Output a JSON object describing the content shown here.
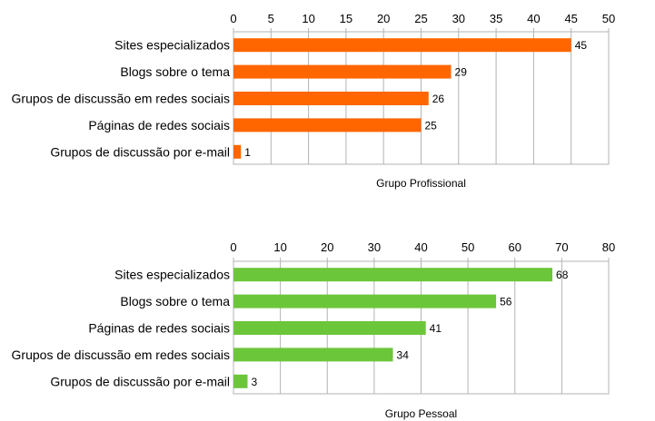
{
  "chart_data": [
    {
      "type": "bar",
      "orientation": "horizontal",
      "xlabel": "Grupo Profissional",
      "xlim": [
        0,
        50
      ],
      "ticks": [
        0,
        5,
        10,
        15,
        20,
        25,
        30,
        35,
        40,
        45,
        50
      ],
      "tick_position": "top",
      "grid": true,
      "color": "#FF6600",
      "categories": [
        "Sites especializados",
        "Blogs sobre o tema",
        "Grupos de discussão em redes sociais",
        "Páginas de redes sociais",
        "Grupos de discussão por e-mail"
      ],
      "values": [
        45,
        29,
        26,
        25,
        1
      ]
    },
    {
      "type": "bar",
      "orientation": "horizontal",
      "xlabel": "Grupo Pessoal",
      "xlim": [
        0,
        80
      ],
      "ticks": [
        0,
        10,
        20,
        30,
        40,
        50,
        60,
        70,
        80
      ],
      "tick_position": "top",
      "grid": true,
      "color": "#6CC63A",
      "categories": [
        "Sites especializados",
        "Blogs sobre o tema",
        "Páginas de redes sociais",
        "Grupos de discussão em redes sociais",
        "Grupos de discussão por e-mail"
      ],
      "values": [
        68,
        56,
        41,
        34,
        3
      ]
    }
  ]
}
